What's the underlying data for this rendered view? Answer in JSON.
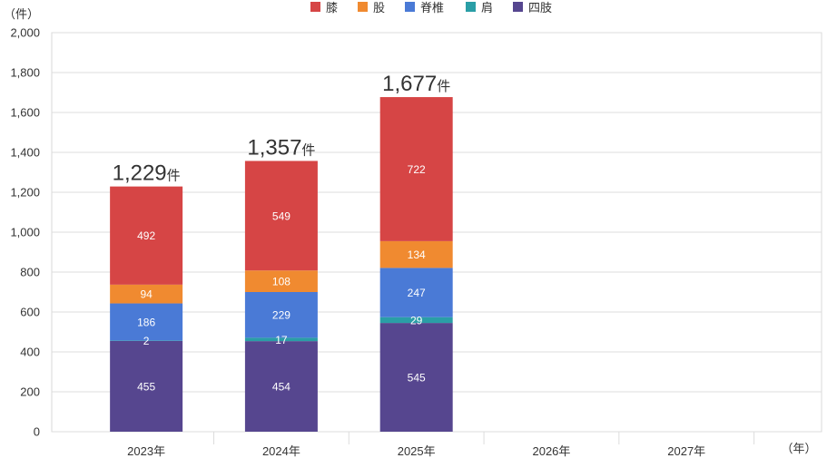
{
  "chart_data": {
    "type": "bar",
    "stacked": true,
    "categories": [
      "2023年",
      "2024年",
      "2025年",
      "2026年",
      "2027年"
    ],
    "series": [
      {
        "name": "四肢",
        "color": "#56468f",
        "values": [
          455,
          454,
          545,
          null,
          null
        ]
      },
      {
        "name": "肩",
        "color": "#2a9ea6",
        "values": [
          2,
          17,
          29,
          null,
          null
        ]
      },
      {
        "name": "脊椎",
        "color": "#4a7ad6",
        "values": [
          186,
          229,
          247,
          null,
          null
        ]
      },
      {
        "name": "股",
        "color": "#f08a30",
        "values": [
          94,
          108,
          134,
          null,
          null
        ]
      },
      {
        "name": "膝",
        "color": "#d64545",
        "values": [
          492,
          549,
          722,
          null,
          null
        ]
      }
    ],
    "legend_order": [
      "膝",
      "股",
      "脊椎",
      "肩",
      "四肢"
    ],
    "legend_position": "top-center",
    "totals": [
      "1,229",
      "1,357",
      "1,677",
      null,
      null
    ],
    "total_unit": "件",
    "ylabel": "（件）",
    "xlabel": "（年）",
    "ylim": [
      0,
      2000
    ],
    "yticks": [
      "0",
      "200",
      "400",
      "600",
      "800",
      "1,000",
      "1,200",
      "1,400",
      "1,600",
      "1,800",
      "2,000"
    ],
    "grid": true
  }
}
